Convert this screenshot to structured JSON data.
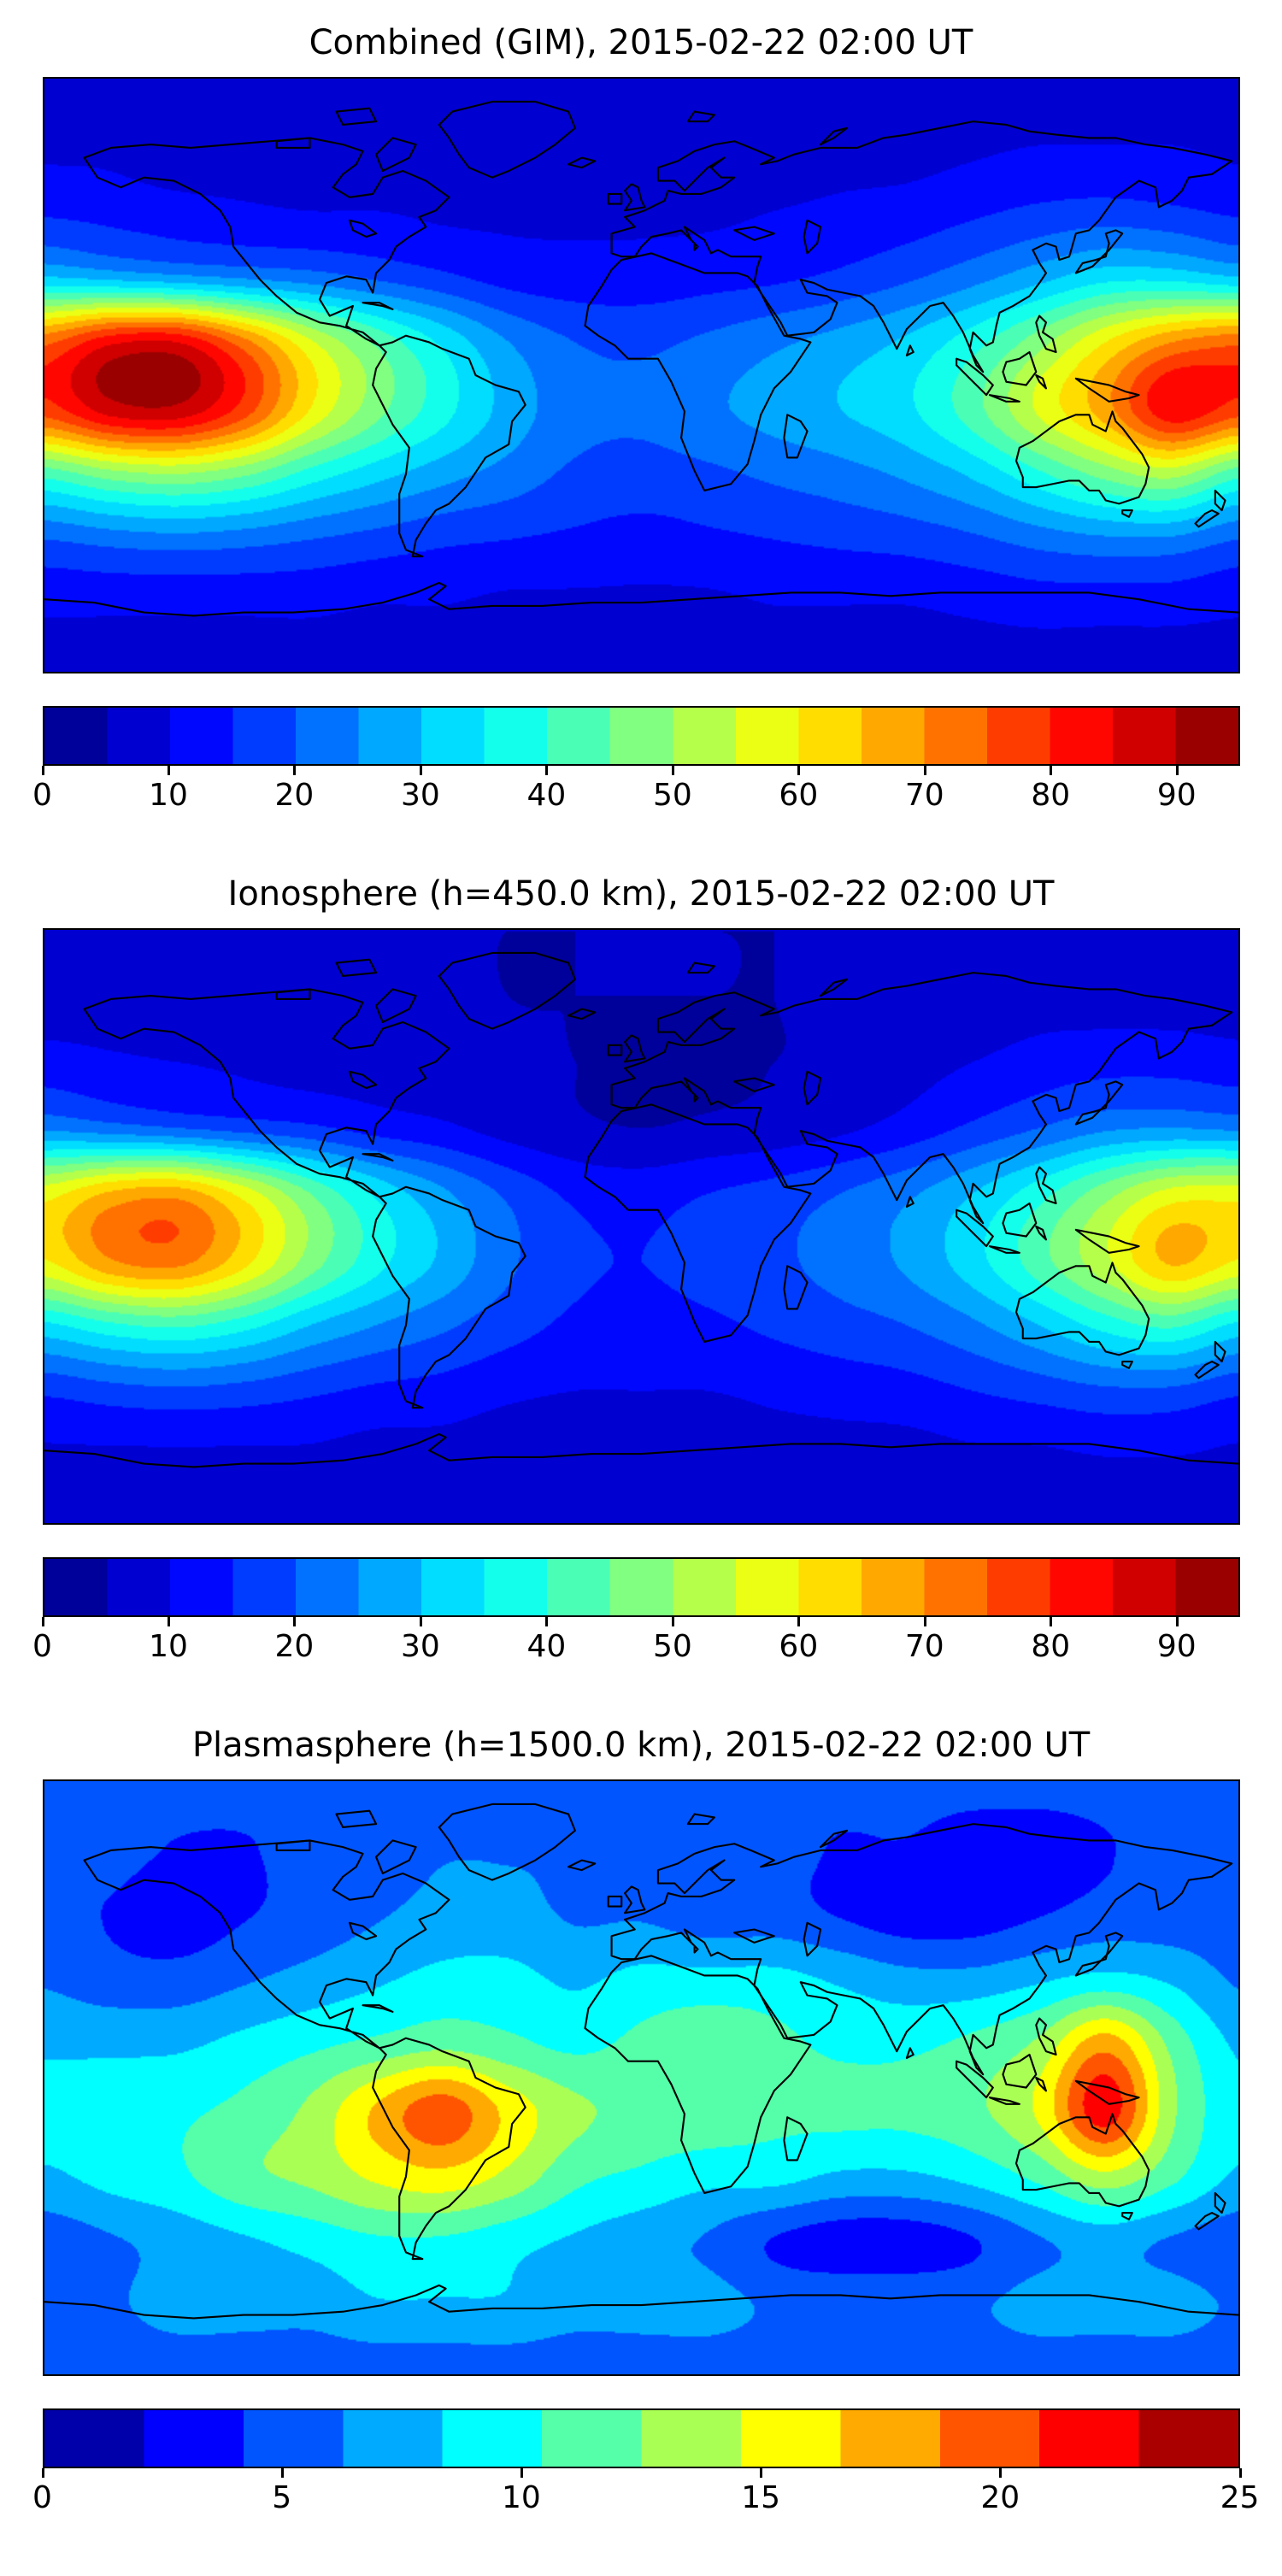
{
  "figure": {
    "background": "#ffffff",
    "colormap": "jet",
    "projection": "equirectangular world map, lon -180..180 (x), lat 90..-90 (y)"
  },
  "chart_data": [
    {
      "type": "heatmap",
      "title": "Combined (GIM), 2015-02-22 02:00 UT",
      "colormap": "jet",
      "vmin": 0,
      "vmax": 95,
      "levels": 19,
      "legend_position": "colorbar below, horizontal",
      "colorbar_ticks": [
        0,
        10,
        20,
        30,
        40,
        50,
        60,
        70,
        80,
        90
      ],
      "grid": {
        "lats": [
          90,
          70,
          50,
          30,
          10,
          -10,
          -30,
          -50,
          -70,
          -90
        ],
        "lons": [
          -180,
          -160,
          -140,
          -120,
          -100,
          -80,
          -60,
          -40,
          -20,
          0,
          20,
          40,
          60,
          80,
          100,
          120,
          140,
          160,
          180
        ],
        "values": [
          [
            6,
            6,
            6,
            6,
            6,
            6,
            6,
            6,
            6,
            6,
            6,
            6,
            6,
            6,
            6,
            6,
            6,
            6,
            6
          ],
          [
            9,
            9,
            8,
            8,
            7,
            7,
            7,
            7,
            7,
            7,
            7,
            7,
            8,
            8,
            9,
            10,
            10,
            10,
            9
          ],
          [
            14,
            13,
            12,
            11,
            10,
            10,
            9,
            9,
            9,
            9,
            9,
            10,
            11,
            12,
            14,
            16,
            17,
            16,
            14
          ],
          [
            30,
            28,
            26,
            24,
            22,
            19,
            16,
            13,
            12,
            12,
            13,
            14,
            16,
            19,
            23,
            28,
            33,
            33,
            30
          ],
          [
            74,
            84,
            85,
            72,
            56,
            44,
            34,
            25,
            20,
            19,
            21,
            24,
            27,
            31,
            38,
            48,
            60,
            70,
            74
          ],
          [
            78,
            88,
            89,
            78,
            60,
            47,
            37,
            28,
            22,
            21,
            24,
            27,
            30,
            34,
            43,
            56,
            68,
            84,
            78
          ],
          [
            42,
            48,
            50,
            46,
            38,
            32,
            27,
            23,
            19,
            18,
            19,
            21,
            23,
            26,
            31,
            39,
            47,
            52,
            42
          ],
          [
            20,
            22,
            23,
            22,
            20,
            18,
            16,
            15,
            14,
            13,
            14,
            15,
            16,
            17,
            19,
            22,
            24,
            24,
            20
          ],
          [
            11,
            11,
            11,
            11,
            11,
            10,
            10,
            9,
            9,
            9,
            9,
            10,
            10,
            10,
            11,
            12,
            12,
            12,
            11
          ],
          [
            8,
            8,
            8,
            8,
            8,
            8,
            8,
            8,
            8,
            8,
            8,
            8,
            8,
            8,
            8,
            8,
            8,
            8,
            8
          ]
        ]
      }
    },
    {
      "type": "heatmap",
      "title": "Ionosphere  (h=450.0 km), 2015-02-22 02:00 UT",
      "colormap": "jet",
      "vmin": 0,
      "vmax": 95,
      "levels": 19,
      "legend_position": "colorbar below, horizontal",
      "colorbar_ticks": [
        0,
        10,
        20,
        30,
        40,
        50,
        60,
        70,
        80,
        90
      ],
      "grid": {
        "lats": [
          90,
          70,
          50,
          30,
          10,
          -10,
          -30,
          -50,
          -70,
          -90
        ],
        "lons": [
          -180,
          -160,
          -140,
          -120,
          -100,
          -80,
          -60,
          -40,
          -20,
          0,
          20,
          40,
          60,
          80,
          100,
          120,
          140,
          160,
          180
        ],
        "values": [
          [
            5,
            5,
            5,
            5,
            5,
            5,
            5,
            5,
            5,
            5,
            5,
            5,
            5,
            5,
            5,
            5,
            5,
            5,
            5
          ],
          [
            8,
            8,
            7,
            7,
            6,
            6,
            6,
            5,
            5,
            5,
            5,
            5,
            6,
            6,
            7,
            8,
            8,
            8,
            8
          ],
          [
            12,
            11,
            10,
            9,
            8,
            8,
            7,
            6,
            5,
            4,
            4,
            5,
            6,
            8,
            10,
            12,
            13,
            13,
            12
          ],
          [
            24,
            22,
            20,
            18,
            16,
            13,
            11,
            8,
            6,
            5,
            6,
            7,
            9,
            12,
            16,
            20,
            24,
            25,
            24
          ],
          [
            58,
            66,
            68,
            58,
            45,
            34,
            26,
            19,
            14,
            13,
            15,
            17,
            20,
            24,
            30,
            38,
            48,
            57,
            58
          ],
          [
            60,
            70,
            72,
            62,
            48,
            37,
            29,
            21,
            16,
            15,
            17,
            19,
            22,
            26,
            33,
            43,
            54,
            66,
            60
          ],
          [
            34,
            39,
            41,
            37,
            30,
            25,
            21,
            17,
            14,
            13,
            14,
            16,
            18,
            20,
            24,
            30,
            37,
            41,
            34
          ],
          [
            16,
            18,
            19,
            18,
            16,
            14,
            13,
            11,
            10,
            10,
            10,
            11,
            12,
            13,
            15,
            17,
            19,
            19,
            16
          ],
          [
            9,
            9,
            9,
            9,
            9,
            8,
            8,
            7,
            7,
            7,
            7,
            8,
            8,
            8,
            9,
            9,
            10,
            10,
            9
          ],
          [
            6,
            6,
            6,
            6,
            6,
            6,
            6,
            6,
            6,
            6,
            6,
            6,
            6,
            6,
            6,
            6,
            6,
            6,
            6
          ]
        ]
      }
    },
    {
      "type": "heatmap",
      "title": "Plasmasphere (h=1500.0 km), 2015-02-22 02:00 UT",
      "colormap": "jet",
      "vmin": 0,
      "vmax": 25,
      "levels": 12,
      "legend_position": "colorbar below, horizontal",
      "colorbar_ticks": [
        0,
        5,
        10,
        15,
        20,
        25
      ],
      "grid": {
        "lats": [
          90,
          70,
          50,
          30,
          10,
          -10,
          -30,
          -50,
          -70,
          -90
        ],
        "lons": [
          -180,
          -160,
          -140,
          -120,
          -100,
          -80,
          -60,
          -40,
          -20,
          0,
          20,
          40,
          60,
          80,
          100,
          120,
          140,
          160,
          180
        ],
        "values": [
          [
            5,
            5,
            5,
            5,
            5,
            5,
            5,
            5,
            5,
            5,
            5,
            5,
            5,
            5,
            5,
            5,
            5,
            5,
            5
          ],
          [
            5,
            5,
            4,
            4,
            5,
            5,
            6,
            6,
            6,
            6,
            5,
            5,
            4,
            4,
            3,
            3,
            4,
            5,
            5
          ],
          [
            5,
            4,
            3,
            4,
            5,
            6,
            7,
            7,
            6,
            6,
            5,
            5,
            4,
            3,
            3,
            4,
            5,
            5,
            5
          ],
          [
            6,
            5,
            5,
            6,
            7,
            8,
            9,
            9,
            8,
            9,
            9,
            9,
            8,
            7,
            7,
            8,
            9,
            8,
            6
          ],
          [
            8,
            8,
            8,
            9,
            10,
            11,
            12,
            11,
            10,
            11,
            12,
            11,
            10,
            10,
            11,
            13,
            18,
            12,
            8
          ],
          [
            9,
            9,
            10,
            11,
            13,
            17,
            20,
            16,
            13,
            12,
            12,
            11,
            11,
            11,
            12,
            15,
            22,
            13,
            9
          ],
          [
            8,
            9,
            10,
            12,
            13,
            15,
            16,
            14,
            11,
            10,
            9,
            9,
            8,
            8,
            9,
            11,
            14,
            11,
            8
          ],
          [
            5,
            6,
            7,
            8,
            9,
            10,
            10,
            9,
            8,
            7,
            6,
            4,
            3,
            3,
            4,
            6,
            7,
            6,
            5
          ],
          [
            6,
            6,
            7,
            7,
            7,
            8,
            8,
            8,
            7,
            7,
            7,
            6,
            6,
            6,
            6,
            7,
            7,
            7,
            6
          ],
          [
            5,
            5,
            5,
            5,
            5,
            5,
            5,
            5,
            5,
            5,
            5,
            5,
            5,
            5,
            5,
            5,
            5,
            5,
            5
          ]
        ]
      }
    }
  ]
}
